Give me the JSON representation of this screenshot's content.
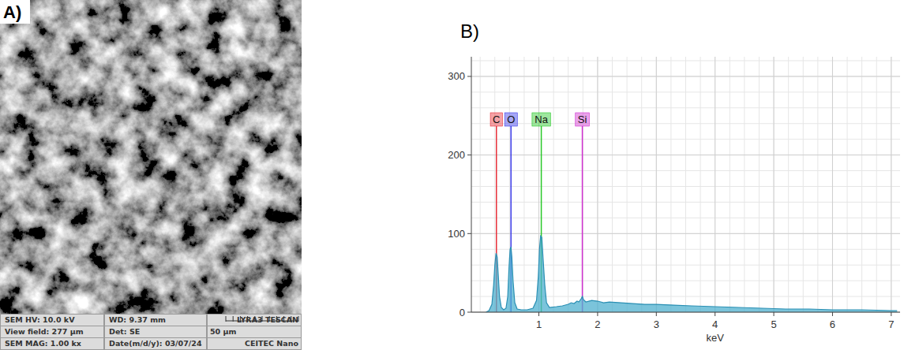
{
  "image_panel": {
    "label": "A)",
    "info_rows": [
      [
        "SEM HV: 10.0 kV",
        "WD: 9.37 mm"
      ],
      [
        "View field: 277 μm",
        "Det: SE"
      ],
      [
        "SEM MAG: 1.00 kx",
        "Date(m/d/y): 03/07/24"
      ]
    ],
    "scale_bar": "50 μm",
    "brand": "LYRA3 TESCAN",
    "facility": "CEITEC Nano"
  },
  "chart_data": {
    "type": "area",
    "title": "B)",
    "x_label": "keV",
    "x": [
      0.1,
      0.15,
      0.2,
      0.23,
      0.25,
      0.27,
      0.29,
      0.31,
      0.33,
      0.36,
      0.4,
      0.44,
      0.47,
      0.49,
      0.51,
      0.525,
      0.54,
      0.56,
      0.59,
      0.63,
      0.7,
      0.8,
      0.9,
      0.96,
      0.99,
      1.01,
      1.03,
      1.05,
      1.07,
      1.1,
      1.13,
      1.18,
      1.3,
      1.4,
      1.5,
      1.55,
      1.6,
      1.65,
      1.68,
      1.72,
      1.74,
      1.76,
      1.8,
      1.9,
      2.0,
      2.1,
      2.2,
      2.4,
      2.6,
      2.8,
      3.0,
      3.3,
      3.6,
      4.0,
      4.4,
      4.8,
      5.2,
      5.6,
      6.0,
      6.5,
      7.0,
      7.1
    ],
    "values": [
      0,
      2,
      10,
      35,
      60,
      75,
      70,
      45,
      20,
      6,
      3,
      5,
      20,
      55,
      80,
      83,
      70,
      40,
      12,
      4,
      3,
      3,
      5,
      15,
      45,
      80,
      97,
      95,
      70,
      35,
      12,
      6,
      7,
      8,
      10,
      12,
      11,
      14,
      13,
      17,
      20,
      16,
      13,
      15,
      14,
      12,
      13,
      12,
      11,
      10,
      10,
      9,
      8,
      7,
      6,
      5,
      4,
      4,
      3,
      3,
      2,
      2
    ],
    "color": "#4fb0cf",
    "xlim": [
      -0.15,
      7.15
    ],
    "xticks": [
      1,
      2,
      3,
      4,
      5,
      6,
      7
    ],
    "ylim": [
      0,
      325
    ],
    "yticks": [
      0,
      100,
      200,
      300
    ],
    "grid": true,
    "annotations": [
      {
        "label": "C",
        "x": 0.277,
        "color": "#e8303a"
      },
      {
        "label": "O",
        "x": 0.525,
        "color": "#3a3ae8"
      },
      {
        "label": "Na",
        "x": 1.041,
        "color": "#28c828"
      },
      {
        "label": "Si",
        "x": 1.74,
        "color": "#d030d0"
      }
    ]
  }
}
